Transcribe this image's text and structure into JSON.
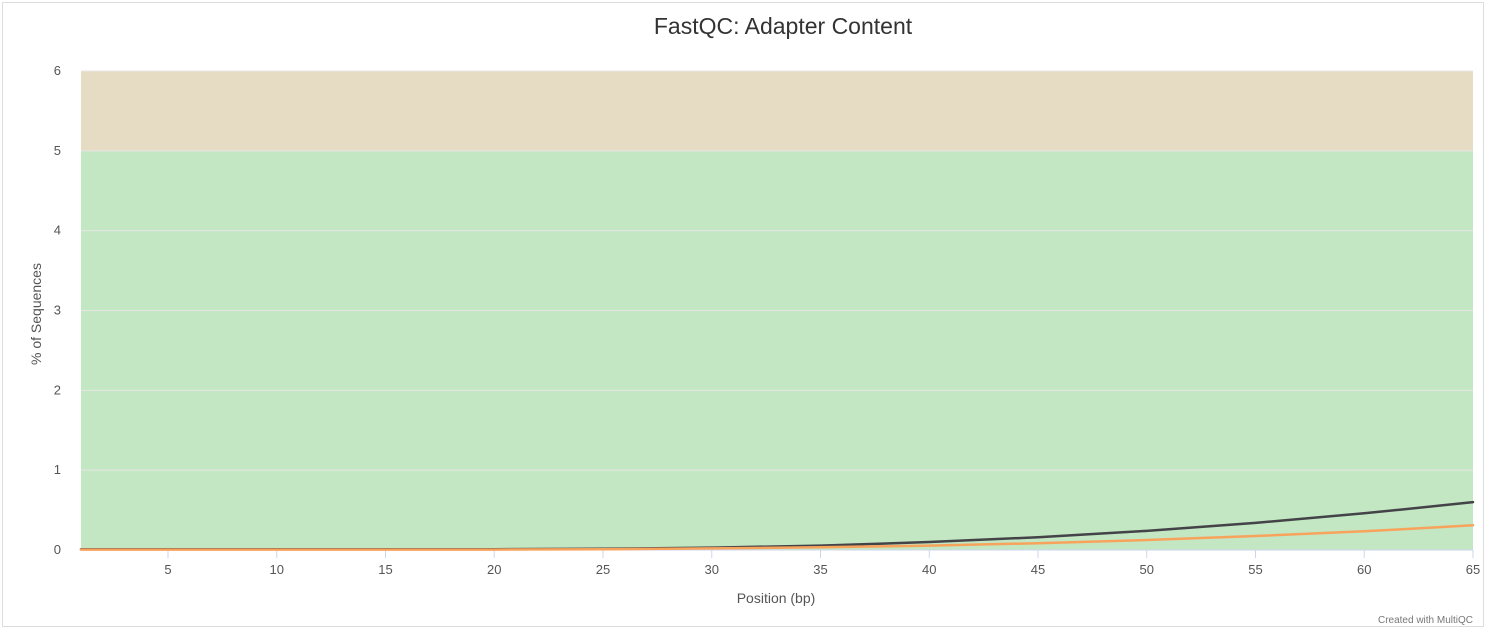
{
  "chart_data": {
    "type": "line",
    "title": "FastQC: Adapter Content",
    "xlabel": "Position (bp)",
    "ylabel": "% of Sequences",
    "xlim": [
      1,
      65
    ],
    "ylim": [
      0,
      6
    ],
    "x_ticks": [
      5,
      10,
      15,
      20,
      25,
      30,
      35,
      40,
      45,
      50,
      55,
      60,
      65
    ],
    "y_ticks": [
      0,
      1,
      2,
      3,
      4,
      5,
      6
    ],
    "grid": true,
    "legend": "none",
    "bands": [
      {
        "from": 0,
        "to": 5,
        "color": "#c3e6c3"
      },
      {
        "from": 5,
        "to": 6,
        "color": "#e6dcc3"
      }
    ],
    "series": [
      {
        "color": "#434348",
        "x": [
          1,
          5,
          10,
          15,
          20,
          25,
          30,
          35,
          40,
          45,
          50,
          55,
          60,
          65
        ],
        "values": [
          0.01,
          0.01,
          0.01,
          0.01,
          0.01,
          0.015,
          0.03,
          0.055,
          0.1,
          0.16,
          0.24,
          0.34,
          0.46,
          0.6
        ]
      },
      {
        "color": "#f7a35c",
        "x": [
          1,
          5,
          10,
          15,
          20,
          25,
          30,
          35,
          40,
          45,
          50,
          55,
          60,
          65
        ],
        "values": [
          0.005,
          0.005,
          0.005,
          0.005,
          0.005,
          0.01,
          0.02,
          0.035,
          0.055,
          0.085,
          0.125,
          0.175,
          0.235,
          0.31
        ]
      }
    ],
    "credit": "Created with MultiQC"
  }
}
